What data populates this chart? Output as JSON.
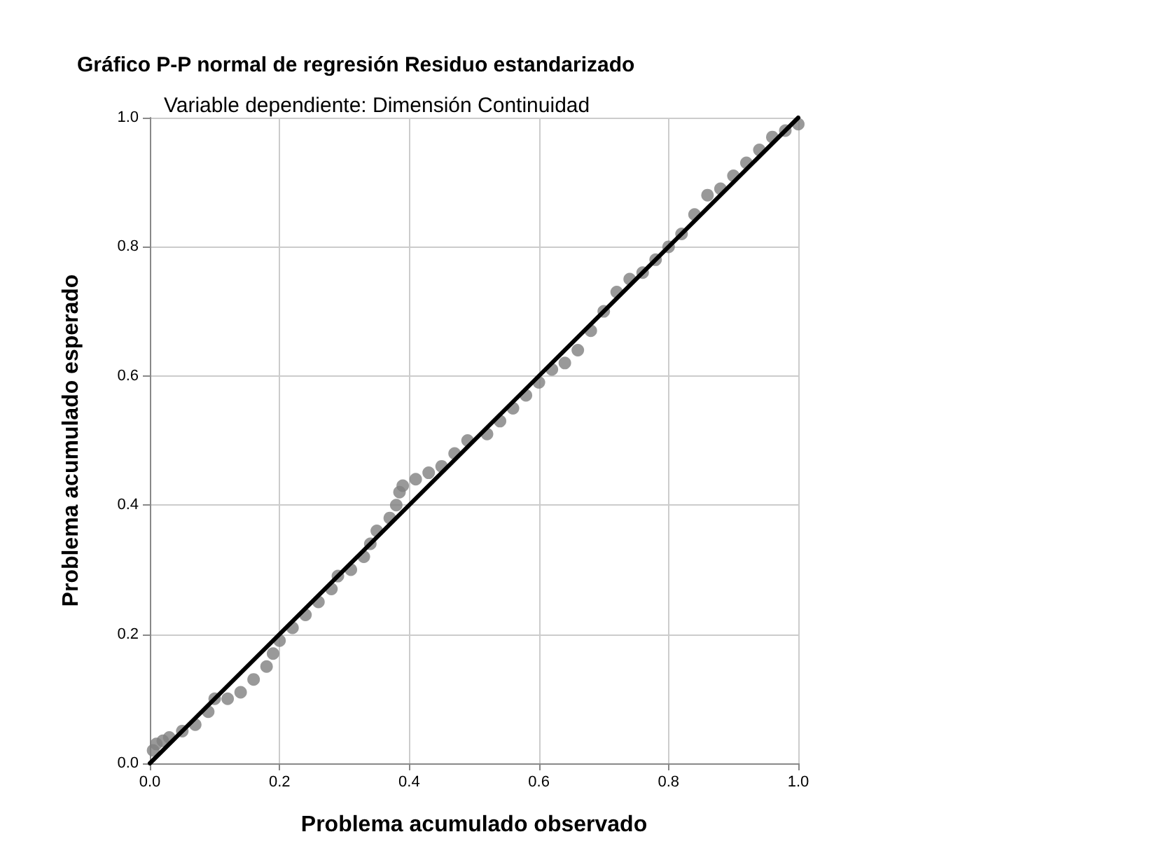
{
  "chart_data": {
    "type": "scatter",
    "title": "Gráfico P-P normal de regresión Residuo estandarizado",
    "subtitle": "Variable dependiente: Dimensión Continuidad",
    "xlabel": "Problema acumulado observado",
    "ylabel": "Problema acumulado esperado",
    "xlim": [
      0,
      1
    ],
    "ylim": [
      0,
      1
    ],
    "xticks": [
      {
        "value": 0,
        "label": "0.0"
      },
      {
        "value": 0.2,
        "label": "0.2"
      },
      {
        "value": 0.4,
        "label": "0.4"
      },
      {
        "value": 0.6,
        "label": "0.6"
      },
      {
        "value": 0.8,
        "label": "0.8"
      },
      {
        "value": 1,
        "label": "1.0"
      }
    ],
    "yticks": [
      {
        "value": 0,
        "label": "0.0"
      },
      {
        "value": 0.2,
        "label": "0.2"
      },
      {
        "value": 0.4,
        "label": "0.4"
      },
      {
        "value": 0.6,
        "label": "0.6"
      },
      {
        "value": 0.8,
        "label": "0.8"
      },
      {
        "value": 1,
        "label": "1.0"
      }
    ],
    "grid": true,
    "marker": "circle",
    "series": [
      {
        "color": "#808080",
        "x": [
          0.005,
          0.01,
          0.02,
          0.03,
          0.05,
          0.07,
          0.09,
          0.1,
          0.12,
          0.14,
          0.16,
          0.18,
          0.19,
          0.2,
          0.22,
          0.24,
          0.26,
          0.28,
          0.29,
          0.31,
          0.33,
          0.34,
          0.35,
          0.37,
          0.38,
          0.385,
          0.39,
          0.41,
          0.43,
          0.45,
          0.47,
          0.49,
          0.52,
          0.54,
          0.56,
          0.58,
          0.6,
          0.62,
          0.64,
          0.66,
          0.68,
          0.7,
          0.72,
          0.74,
          0.76,
          0.78,
          0.8,
          0.82,
          0.84,
          0.86,
          0.88,
          0.9,
          0.92,
          0.94,
          0.96,
          0.98,
          1.0
        ],
        "values": [
          0.02,
          0.03,
          0.035,
          0.04,
          0.05,
          0.06,
          0.08,
          0.1,
          0.1,
          0.11,
          0.13,
          0.15,
          0.17,
          0.19,
          0.21,
          0.23,
          0.25,
          0.27,
          0.29,
          0.3,
          0.32,
          0.34,
          0.36,
          0.38,
          0.4,
          0.42,
          0.43,
          0.44,
          0.45,
          0.46,
          0.48,
          0.5,
          0.51,
          0.53,
          0.55,
          0.57,
          0.59,
          0.61,
          0.62,
          0.64,
          0.67,
          0.7,
          0.73,
          0.75,
          0.76,
          0.78,
          0.8,
          0.82,
          0.85,
          0.88,
          0.89,
          0.91,
          0.93,
          0.95,
          0.97,
          0.98,
          0.99
        ]
      },
      {
        "type": "line",
        "color": "#000000",
        "x": [
          0,
          1
        ],
        "values": [
          0,
          1
        ],
        "marker": "none",
        "line_style": "solid"
      }
    ]
  }
}
